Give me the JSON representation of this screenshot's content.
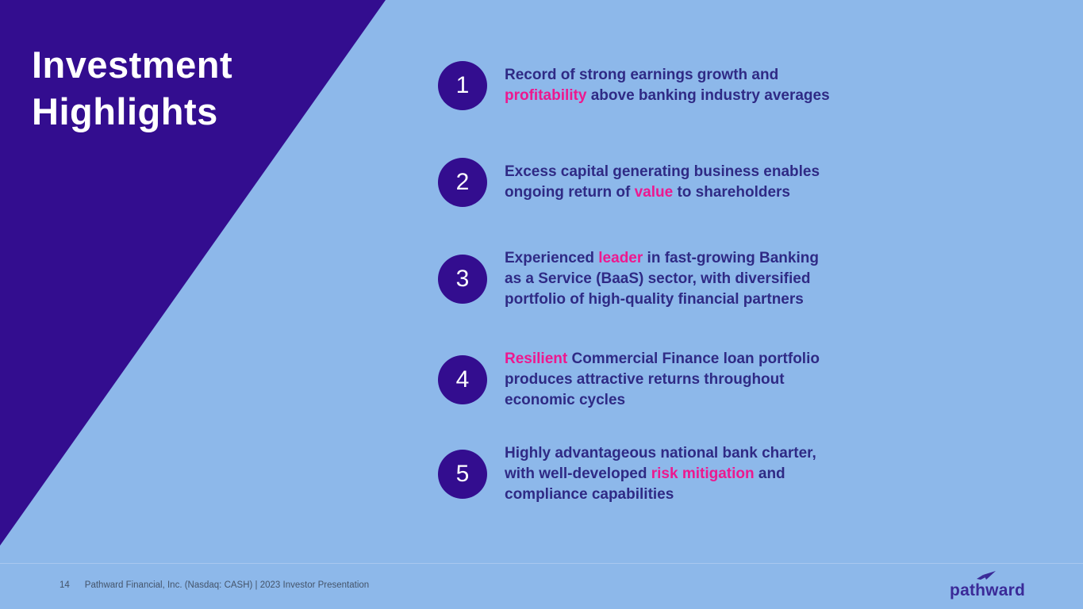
{
  "slide": {
    "title": "Investment\nHighlights",
    "items": [
      {
        "number": "1",
        "segments": [
          {
            "t": "Record of strong earnings growth and\n",
            "h": false
          },
          {
            "t": "profitability",
            "h": true
          },
          {
            "t": " above banking industry averages",
            "h": false
          }
        ]
      },
      {
        "number": "2",
        "segments": [
          {
            "t": "Excess capital generating business enables\nongoing return of ",
            "h": false
          },
          {
            "t": "value",
            "h": true
          },
          {
            "t": " to shareholders",
            "h": false
          }
        ]
      },
      {
        "number": "3",
        "segments": [
          {
            "t": "Experienced ",
            "h": false
          },
          {
            "t": "leader",
            "h": true
          },
          {
            "t": " in fast-growing Banking\nas a Service (BaaS) sector, with diversified\nportfolio of high-quality financial partners",
            "h": false
          }
        ]
      },
      {
        "number": "4",
        "segments": [
          {
            "t": "Resilient",
            "h": true
          },
          {
            "t": " Commercial Finance loan portfolio\nproduces attractive returns throughout\neconomic cycles",
            "h": false
          }
        ]
      },
      {
        "number": "5",
        "segments": [
          {
            "t": "Highly advantageous national bank charter,\nwith well-developed ",
            "h": false
          },
          {
            "t": "risk mitigation",
            "h": true
          },
          {
            "t": " and\ncompliance capabilities",
            "h": false
          }
        ]
      }
    ],
    "footer": {
      "page_number": "14",
      "source": "Pathward Financial, Inc. (Nasdaq: CASH) | 2023 Investor Presentation",
      "logo_text": "pathward"
    },
    "colors": {
      "background": "#8db8ea",
      "accent_purple": "#330d8f",
      "text_dark": "#2f2a85",
      "highlight_pink": "#ed188f",
      "footer_text": "#44546a",
      "divider": "#a9c7ef",
      "title_white": "#ffffff",
      "logo_purple": "#3b2a98"
    }
  }
}
